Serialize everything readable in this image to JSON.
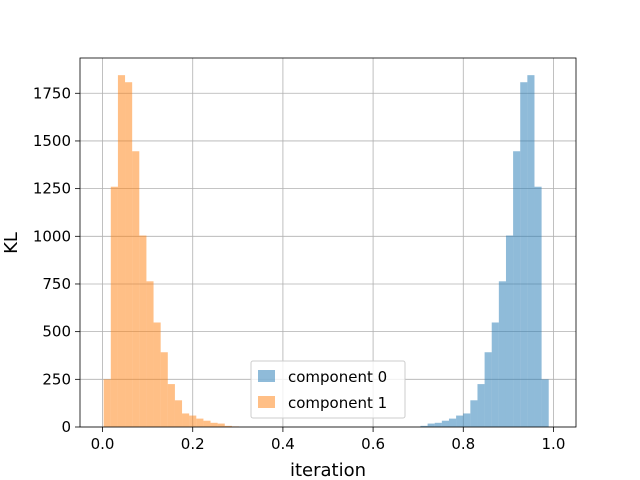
{
  "chart_data": {
    "type": "histogram",
    "xlabel": "iteration",
    "ylabel": "KL",
    "xlim": [
      -0.05,
      1.05
    ],
    "ylim": [
      0,
      1935
    ],
    "x_ticks": [
      0.0,
      0.2,
      0.4,
      0.6,
      0.8,
      1.0
    ],
    "x_tick_labels": [
      "0.0",
      "0.2",
      "0.4",
      "0.6",
      "0.8",
      "1.0"
    ],
    "y_ticks": [
      0,
      250,
      500,
      750,
      1000,
      1250,
      1500,
      1750
    ],
    "y_tick_labels": [
      "0",
      "250",
      "500",
      "750",
      "1000",
      "1250",
      "1500",
      "1750"
    ],
    "grid": true,
    "legend_position": "lower center",
    "bin_width": 0.0158,
    "series": [
      {
        "name": "component 0",
        "color": "#1f77b4",
        "alpha": 0.5,
        "bin_starts": [
          0.7051,
          0.7209,
          0.7367,
          0.7525,
          0.7683,
          0.7841,
          0.7999,
          0.8157,
          0.8315,
          0.8473,
          0.8631,
          0.8789,
          0.8947,
          0.9105,
          0.9263,
          0.9421,
          0.9579,
          0.9737
        ],
        "values": [
          6,
          18,
          22,
          33,
          44,
          60,
          71,
          140,
          225,
          392,
          548,
          764,
          1004,
          1446,
          1808,
          1845,
          1260,
          250
        ]
      },
      {
        "name": "component 1",
        "color": "#ff7f0e",
        "alpha": 0.5,
        "bin_starts": [
          0.0025,
          0.0183,
          0.0341,
          0.0499,
          0.0657,
          0.0815,
          0.0973,
          0.1131,
          0.1289,
          0.1447,
          0.1605,
          0.1763,
          0.1921,
          0.2079,
          0.2237,
          0.2395,
          0.2553,
          0.2711,
          0.2869
        ],
        "values": [
          250,
          1260,
          1845,
          1808,
          1446,
          1004,
          764,
          548,
          392,
          225,
          140,
          71,
          60,
          44,
          33,
          22,
          18,
          6,
          3
        ]
      }
    ]
  }
}
